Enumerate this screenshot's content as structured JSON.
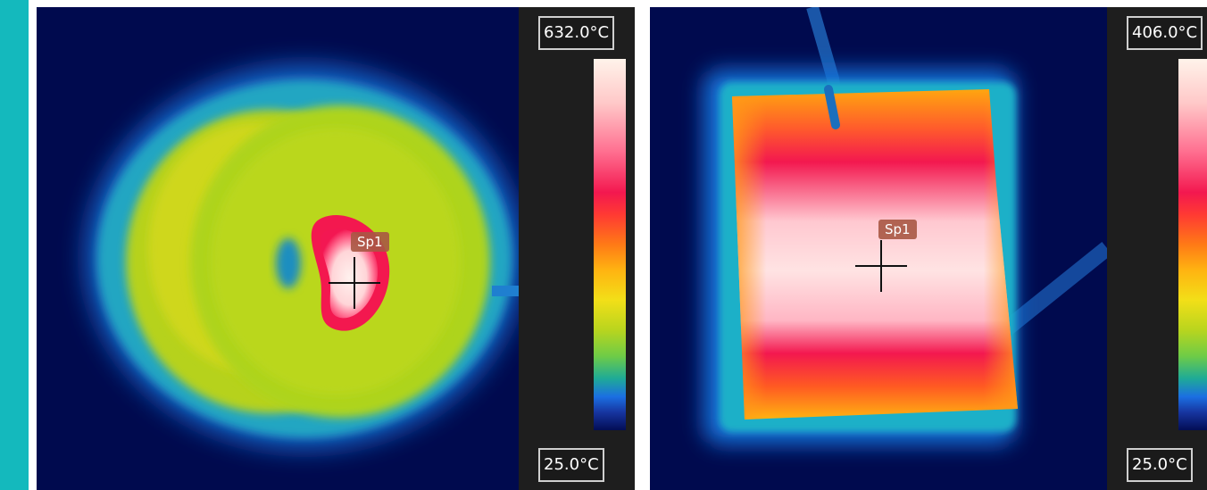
{
  "accent_color": "#14b9bd",
  "thermal_images": [
    {
      "max_temp": "632.0°C",
      "min_temp": "25.0°C",
      "spot_label": "Sp1",
      "palette": "rainbow-high-contrast"
    },
    {
      "max_temp": "406.0°C",
      "min_temp": "25.0°C",
      "spot_label": "Sp1",
      "palette": "rainbow-high-contrast"
    }
  ]
}
